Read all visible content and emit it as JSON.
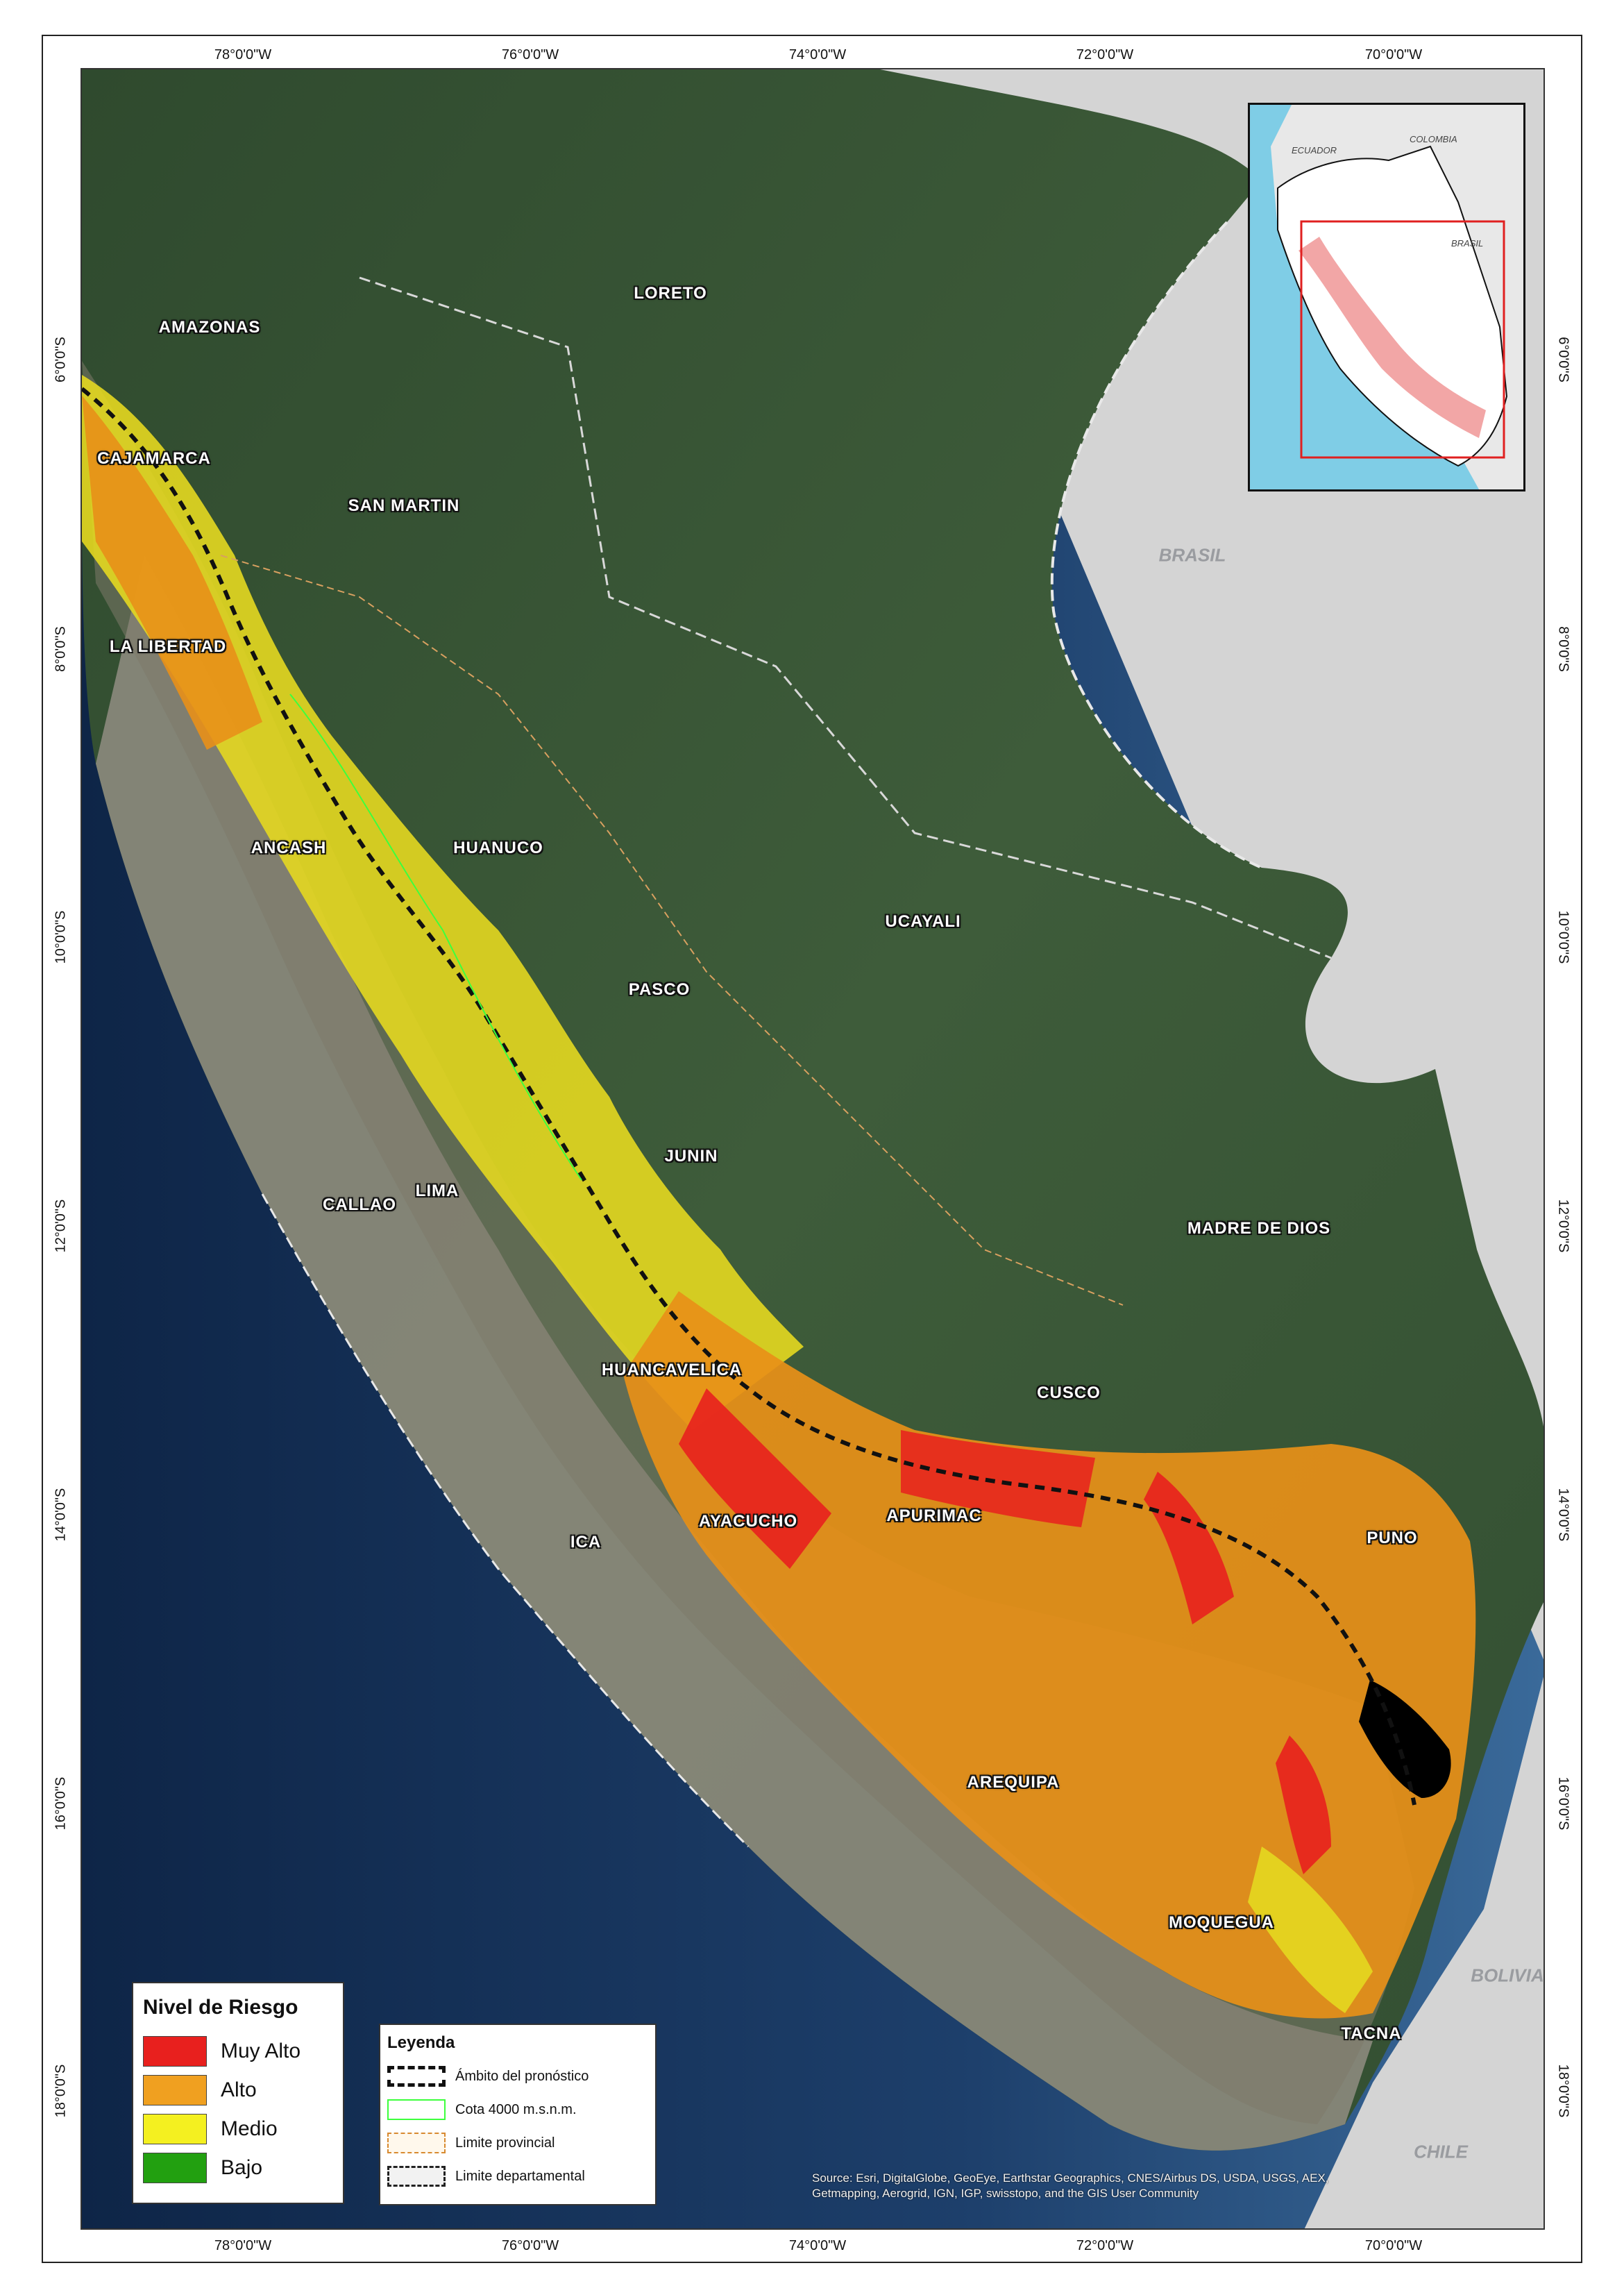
{
  "map": {
    "lon_ticks": [
      "78°0'0\"W",
      "76°0'0\"W",
      "74°0'0\"W",
      "72°0'0\"W",
      "70°0'0\"W"
    ],
    "lat_ticks": [
      "6°0'0\"S",
      "8°0'0\"S",
      "10°0'0\"S",
      "12°0'0\"S",
      "14°0'0\"S",
      "16°0'0\"S",
      "18°0'0\"S"
    ],
    "departments": [
      "AMAZONAS",
      "LORETO",
      "CAJAMARCA",
      "SAN MARTIN",
      "LA LIBERTAD",
      "ANCASH",
      "HUANUCO",
      "UCAYALI",
      "PASCO",
      "JUNIN",
      "LIMA",
      "CALLAO",
      "MADRE DE DIOS",
      "HUANCAVELICA",
      "CUSCO",
      "AYACUCHO",
      "APURIMAC",
      "ICA",
      "PUNO",
      "AREQUIPA",
      "MOQUEGUA",
      "TACNA"
    ],
    "countries": [
      "BRASIL",
      "BOLIVIA",
      "CHILE"
    ],
    "colors": {
      "ocean": "#1d3f6b",
      "forest": "#3d5a3a",
      "highland": "#8c8a7d",
      "foreign_land": "#d4d4d4",
      "lake": "#000000",
      "muy_alto": "#e8201e",
      "alto": "#f0a020",
      "medio": "#f4f020",
      "bajo": "#22a010"
    }
  },
  "inset": {
    "labels": [
      "ECUADOR",
      "COLOMBIA",
      "BRASIL"
    ]
  },
  "risk_legend": {
    "title": "Nivel de Riesgo",
    "items": [
      {
        "label": "Muy Alto",
        "color": "#e8201e"
      },
      {
        "label": "Alto",
        "color": "#f0a020"
      },
      {
        "label": "Medio",
        "color": "#f4f020"
      },
      {
        "label": "Bajo",
        "color": "#22a010"
      }
    ]
  },
  "line_legend": {
    "title": "Leyenda",
    "items": [
      {
        "label": "Ámbito del pronóstico",
        "style": "thick-black-dashed"
      },
      {
        "label": "Cota 4000 m.s.n.m.",
        "style": "green-solid"
      },
      {
        "label": "Limite provincial",
        "style": "orange-dashed"
      },
      {
        "label": "Limite departamental",
        "style": "gray-white-dashed"
      }
    ]
  },
  "credits": {
    "line1": "Source: Esri, DigitalGlobe, GeoEye, Earthstar Geographics, CNES/Airbus DS, USDA, USGS, AEX,",
    "line2": "Getmapping, Aerogrid, IGN, IGP, swisstopo, and the GIS User Community"
  }
}
